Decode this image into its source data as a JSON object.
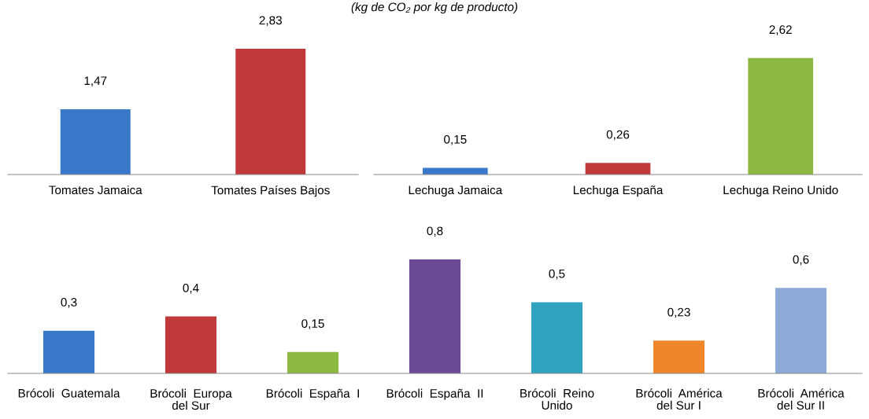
{
  "chart_data": [
    {
      "type": "other",
      "title": "(kg de CO₂ por kg de producto)"
    },
    {
      "type": "bar",
      "categories": [
        "Tomates Jamaica",
        "Tomates Países Bajos"
      ],
      "values": [
        1.47,
        2.83
      ],
      "colors": [
        "#3a78c9",
        "#c0393b"
      ],
      "value_labels": [
        "1,47",
        "2,83"
      ],
      "grid": false,
      "legend": false,
      "tick_labels": "x"
    },
    {
      "type": "bar",
      "categories": [
        "Lechuga Jamaica",
        "Lechuga España",
        "Lechuga Reino Unido"
      ],
      "values": [
        0.15,
        0.26,
        2.62
      ],
      "colors": [
        "#3a78c9",
        "#c0393b",
        "#8db842"
      ],
      "value_labels": [
        "0,15",
        "0,26",
        "2,62"
      ],
      "grid": false,
      "legend": false,
      "tick_labels": "x"
    },
    {
      "type": "bar",
      "categories": [
        "Brócoli  Guatemala",
        "Brócoli  Europa\ndel Sur",
        "Brócoli  España  I",
        "Brócoli  España  II",
        "Brócoli  Reino\nUnido",
        "Brócoli  América\ndel Sur I",
        "Brócoli  América\ndel Sur II"
      ],
      "values": [
        0.3,
        0.4,
        0.15,
        0.8,
        0.5,
        0.23,
        0.6
      ],
      "colors": [
        "#3a78c9",
        "#c0393b",
        "#8db842",
        "#6a4a94",
        "#2fa3bf",
        "#f0862a",
        "#8eaad8"
      ],
      "value_labels": [
        "0,3",
        "0,4",
        "0,15",
        "0,8",
        "0,5",
        "0,23",
        "0,6"
      ],
      "grid": false,
      "legend": false,
      "tick_labels": "x"
    }
  ]
}
